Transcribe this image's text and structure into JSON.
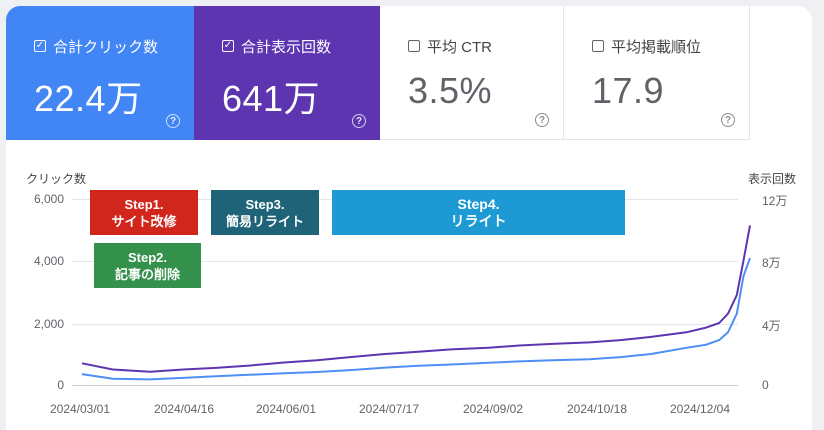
{
  "metrics": [
    {
      "label": "合計クリック数",
      "value": "22.4万",
      "checked": true,
      "color": "#4285f4"
    },
    {
      "label": "合計表示回数",
      "value": "641万",
      "checked": true,
      "color": "#5e35b1"
    },
    {
      "label": "平均 CTR",
      "value": "3.5%",
      "checked": false
    },
    {
      "label": "平均掲載順位",
      "value": "17.9",
      "checked": false
    }
  ],
  "help_glyph": "?",
  "check_glyph": "✓",
  "chart_data": {
    "type": "line",
    "ylabel_left": "クリック数",
    "ylabel_right": "表示回数",
    "left_ticks": [
      "6,000",
      "4,000",
      "2,000",
      "0"
    ],
    "right_ticks": [
      "12万",
      "8万",
      "4万",
      "0"
    ],
    "ylim_left": [
      0,
      6000
    ],
    "ylim_right": [
      0,
      120000
    ],
    "x_ticks": [
      "2024/03/01",
      "2024/04/16",
      "2024/06/01",
      "2024/07/17",
      "2024/09/02",
      "2024/10/18",
      "2024/12/04"
    ],
    "grid": true,
    "series": [
      {
        "name": "合計クリック数",
        "axis": "left",
        "color": "#4f8ef5",
        "dates": [
          "2024-03-01",
          "2024-03-15",
          "2024-04-01",
          "2024-04-16",
          "2024-05-01",
          "2024-05-16",
          "2024-06-01",
          "2024-06-16",
          "2024-07-01",
          "2024-07-17",
          "2024-08-01",
          "2024-08-16",
          "2024-09-02",
          "2024-09-16",
          "2024-10-01",
          "2024-10-18",
          "2024-11-01",
          "2024-11-15",
          "2024-12-01",
          "2024-12-10",
          "2024-12-16",
          "2024-12-20",
          "2024-12-24",
          "2024-12-27",
          "2024-12-30"
        ],
        "values": [
          350,
          200,
          180,
          230,
          280,
          330,
          380,
          420,
          480,
          560,
          620,
          660,
          720,
          760,
          800,
          830,
          900,
          1000,
          1200,
          1300,
          1450,
          1700,
          2300,
          3500,
          4100
        ]
      },
      {
        "name": "合計表示回数",
        "axis": "right",
        "color": "#5e35b1",
        "dates": [
          "2024-03-01",
          "2024-03-15",
          "2024-04-01",
          "2024-04-16",
          "2024-05-01",
          "2024-05-16",
          "2024-06-01",
          "2024-06-16",
          "2024-07-01",
          "2024-07-17",
          "2024-08-01",
          "2024-08-16",
          "2024-09-02",
          "2024-09-16",
          "2024-10-01",
          "2024-10-18",
          "2024-11-01",
          "2024-11-15",
          "2024-12-01",
          "2024-12-10",
          "2024-12-16",
          "2024-12-20",
          "2024-12-24",
          "2024-12-27",
          "2024-12-30"
        ],
        "values": [
          14000,
          10000,
          8500,
          10000,
          11000,
          12500,
          14500,
          16000,
          18000,
          20000,
          21500,
          23000,
          24000,
          25500,
          26500,
          27500,
          29000,
          31000,
          34000,
          37000,
          40000,
          46000,
          58000,
          80000,
          103000
        ]
      }
    ]
  },
  "annotations": [
    {
      "lines": [
        "Step1.",
        "サイト改修"
      ],
      "color": "#d0261c"
    },
    {
      "lines": [
        "Step2.",
        "記事の削除"
      ],
      "color": "#34914c"
    },
    {
      "lines": [
        "Step3.",
        "簡易リライト"
      ],
      "color": "#1e6378"
    },
    {
      "lines": [
        "Step4.",
        "リライト"
      ],
      "color": "#1d9ad4"
    }
  ]
}
